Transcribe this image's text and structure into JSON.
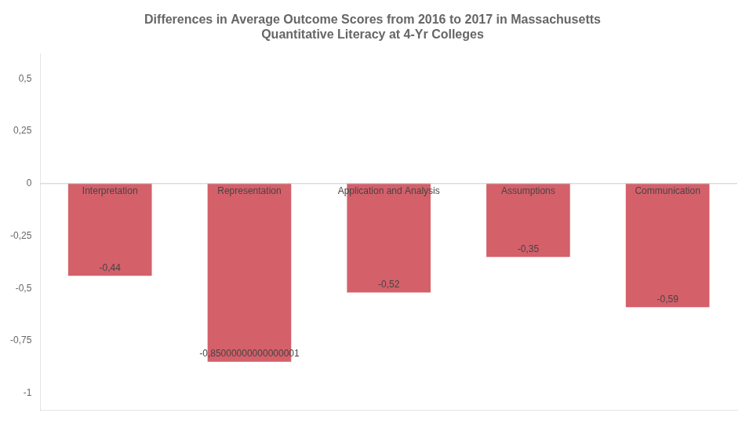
{
  "chart_data": {
    "type": "bar",
    "title": "Differences in Average Outcome Scores from 2016 to 2017 in Massachusetts\nQuantitative Literacy at 4-Yr Colleges",
    "categories": [
      "Interpretation",
      "Representation",
      "Application and Analysis",
      "Assumptions",
      "Communication"
    ],
    "values": [
      -0.44,
      -0.85,
      -0.52,
      -0.35,
      -0.59
    ],
    "value_labels": [
      "-0,44",
      "-0,85000000000000001",
      "-0,52",
      "-0,35",
      "-0,59"
    ],
    "data_labels": true,
    "color": "#d4606a",
    "ylim": [
      -1.08,
      0.62
    ],
    "yticks": [
      -1,
      {
        "value": -0.75,
        "label": "-0,75"
      },
      {
        "value": -0.5,
        "label": "-0,5"
      },
      {
        "value": -0.25,
        "label": "-0,25"
      },
      0,
      {
        "value": 0.25,
        "label": "0,25"
      },
      {
        "value": 0.5,
        "label": "0,5"
      }
    ],
    "grid": false,
    "tick_labels": "y"
  }
}
